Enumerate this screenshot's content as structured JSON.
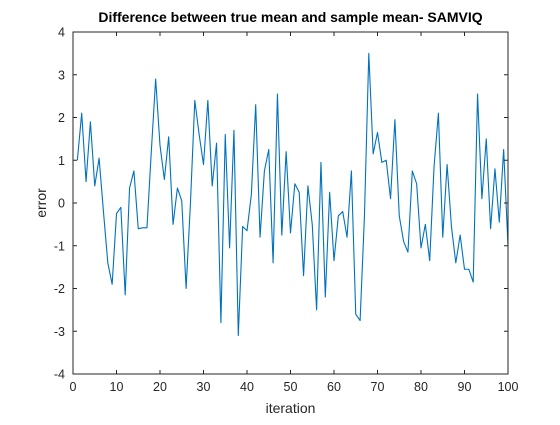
{
  "chart_data": {
    "type": "line",
    "title": "Difference between true mean and sample mean- SAMVIQ",
    "xlabel": "iteration",
    "ylabel": "error",
    "xlim": [
      0,
      100
    ],
    "ylim": [
      -4,
      4
    ],
    "xticks": [
      "0",
      "10",
      "20",
      "30",
      "40",
      "50",
      "60",
      "70",
      "80",
      "90",
      "100"
    ],
    "yticks": [
      "4",
      "3",
      "2",
      "1",
      "0",
      "-1",
      "-2",
      "-3",
      "-4"
    ],
    "grid": false,
    "legend": "none",
    "series": [
      {
        "color": "#0072BD",
        "x": [
          1,
          2,
          3,
          4,
          5,
          6,
          7,
          8,
          9,
          10,
          11,
          12,
          13,
          14,
          15,
          16,
          17,
          18,
          19,
          20,
          21,
          22,
          23,
          24,
          25,
          26,
          27,
          28,
          29,
          30,
          31,
          32,
          33,
          34,
          35,
          36,
          37,
          38,
          39,
          40,
          41,
          42,
          43,
          44,
          45,
          46,
          47,
          48,
          49,
          50,
          51,
          52,
          53,
          54,
          55,
          56,
          57,
          58,
          59,
          60,
          61,
          62,
          63,
          64,
          65,
          66,
          67,
          68,
          69,
          70,
          71,
          72,
          73,
          74,
          75,
          76,
          77,
          78,
          79,
          80,
          81,
          82,
          83,
          84,
          85,
          86,
          87,
          88,
          89,
          90,
          91,
          92,
          93,
          94,
          95,
          96,
          97,
          98,
          99,
          100
        ],
        "y": [
          1.0,
          2.1,
          0.5,
          1.9,
          0.4,
          1.05,
          -0.2,
          -1.4,
          -1.9,
          -0.25,
          -0.1,
          -2.15,
          0.35,
          0.75,
          -0.6,
          -0.58,
          -0.58,
          1.2,
          2.9,
          1.35,
          0.55,
          1.55,
          -0.5,
          0.35,
          0.05,
          -2.0,
          0.0,
          2.4,
          1.6,
          0.9,
          2.4,
          0.4,
          1.4,
          -2.8,
          1.6,
          -1.05,
          1.7,
          -3.1,
          -0.55,
          -0.65,
          0.2,
          2.3,
          -0.8,
          0.75,
          1.25,
          -1.4,
          2.55,
          -0.75,
          1.2,
          -0.7,
          0.45,
          0.25,
          -1.7,
          0.4,
          -0.5,
          -2.5,
          0.95,
          -2.2,
          0.25,
          -1.35,
          -0.3,
          -0.2,
          -0.8,
          0.75,
          -2.6,
          -2.75,
          -0.3,
          3.5,
          1.15,
          1.65,
          0.95,
          1.0,
          0.1,
          1.95,
          -0.3,
          -0.9,
          -1.15,
          0.75,
          0.45,
          -1.05,
          -0.5,
          -1.35,
          0.85,
          2.1,
          -0.8,
          0.9,
          -0.55,
          -1.4,
          -0.75,
          -1.55,
          -1.55,
          -1.85,
          2.55,
          0.1,
          1.5,
          -0.6,
          0.8,
          -0.45,
          1.25,
          -1.0
        ]
      }
    ]
  }
}
